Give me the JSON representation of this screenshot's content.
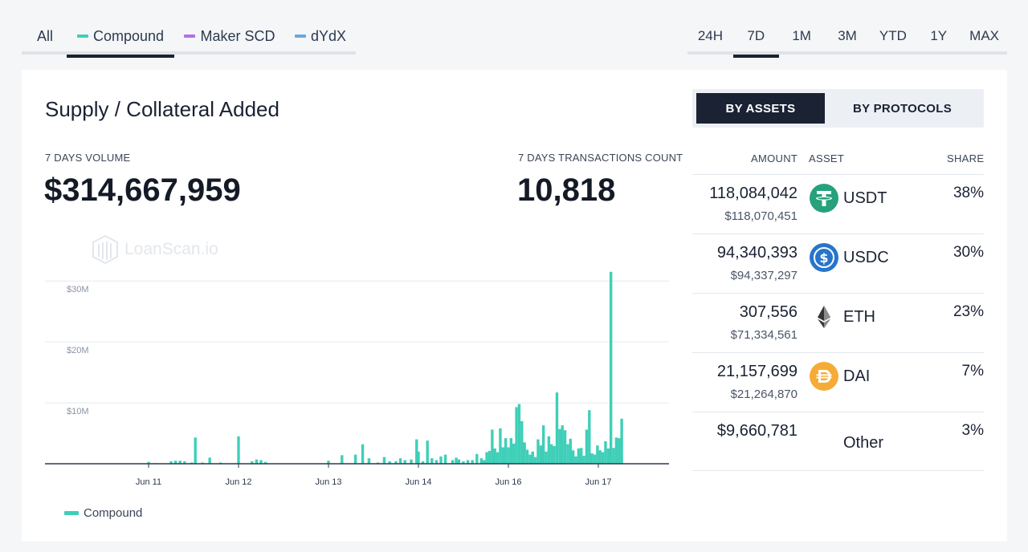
{
  "protocol_tabs": [
    {
      "label": "All",
      "color": null
    },
    {
      "label": "Compound",
      "color": "#3fcfb8"
    },
    {
      "label": "Maker SCD",
      "color": "#b36ee8"
    },
    {
      "label": "dYdX",
      "color": "#6aa8e0"
    }
  ],
  "active_protocol": "Compound",
  "time_tabs": [
    "24H",
    "7D",
    "1M",
    "3M",
    "YTD",
    "1Y",
    "MAX"
  ],
  "active_time": "7D",
  "card": {
    "title": "Supply / Collateral Added",
    "volume_label": "7 DAYS VOLUME",
    "volume_value": "$314,667,959",
    "tx_label": "7 DAYS TRANSACTIONS COUNT",
    "tx_value": "10,818",
    "watermark": "LoanScan.io"
  },
  "breakdown": {
    "tabs": [
      "BY ASSETS",
      "BY PROTOCOLS"
    ],
    "active": "BY ASSETS",
    "headers": {
      "amount": "AMOUNT",
      "asset": "ASSET",
      "share": "SHARE"
    },
    "rows": [
      {
        "amount": "118,084,042",
        "usd": "$118,070,451",
        "symbol": "USDT",
        "share": "38%",
        "icon": "tether-icon",
        "color": "#26a17b"
      },
      {
        "amount": "94,340,393",
        "usd": "$94,337,297",
        "symbol": "USDC",
        "share": "30%",
        "icon": "usdc-icon",
        "color": "#2775ca"
      },
      {
        "amount": "307,556",
        "usd": "$71,334,561",
        "symbol": "ETH",
        "share": "23%",
        "icon": "ethereum-icon",
        "color": "#343434"
      },
      {
        "amount": "21,157,699",
        "usd": "$21,264,870",
        "symbol": "DAI",
        "share": "7%",
        "icon": "dai-icon",
        "color": "#f5ac37"
      },
      {
        "amount": "$9,660,781",
        "usd": "",
        "symbol": "Other",
        "share": "3%",
        "icon": "",
        "color": ""
      }
    ]
  },
  "chart_data": {
    "type": "bar",
    "series": [
      {
        "name": "Compound",
        "color": "#3fcfb8"
      }
    ],
    "y_ticks": [
      "$10M",
      "$20M",
      "$30M"
    ],
    "y_tick_values": [
      10,
      20,
      30
    ],
    "ylim": [
      0,
      32
    ],
    "y_unit": "$M",
    "x_ticks": [
      "Jun 11",
      "Jun 12",
      "Jun 13",
      "Jun 14",
      "Jun 16",
      "Jun 17"
    ],
    "x_tick_values": [
      1.0,
      2.0,
      3.0,
      4.0,
      5.0,
      6.0
    ],
    "xlim": [
      0,
      7
    ],
    "grid": true,
    "legend_position": "bottom-left",
    "bar_x": [
      1.0,
      1.07,
      1.25,
      1.3,
      1.35,
      1.4,
      1.48,
      1.52,
      1.6,
      1.68,
      1.8,
      2.0,
      2.15,
      2.2,
      2.25,
      2.3,
      3.0,
      3.15,
      3.3,
      3.38,
      3.45,
      3.55,
      3.62,
      3.68,
      3.75,
      3.8,
      3.85,
      3.92,
      3.98,
      4.0,
      4.05,
      4.1,
      4.15,
      4.2,
      4.25,
      4.3,
      4.38,
      4.42,
      4.45,
      4.5,
      4.55,
      4.6,
      4.65,
      4.7,
      4.73,
      4.76,
      4.79,
      4.82,
      4.85,
      4.88,
      4.91,
      4.94,
      4.97,
      5.0,
      5.03,
      5.06,
      5.09,
      5.12,
      5.15,
      5.18,
      5.21,
      5.24,
      5.27,
      5.3,
      5.33,
      5.36,
      5.39,
      5.42,
      5.45,
      5.48,
      5.51,
      5.54,
      5.57,
      5.6,
      5.63,
      5.66,
      5.69,
      5.72,
      5.75,
      5.78,
      5.81,
      5.84,
      5.87,
      5.9,
      5.93,
      5.96,
      5.99,
      6.02,
      6.05,
      6.08,
      6.11,
      6.14,
      6.17,
      6.2,
      6.23,
      6.26
    ],
    "values": [
      0.3,
      0.1,
      0.4,
      0.5,
      0.5,
      0.4,
      0.2,
      4.3,
      0.2,
      1.0,
      0.2,
      4.5,
      0.4,
      0.7,
      0.6,
      0.3,
      0.5,
      1.4,
      1.5,
      3.2,
      0.9,
      0.2,
      1.1,
      0.4,
      0.4,
      0.9,
      0.6,
      0.7,
      4.0,
      2.0,
      0.4,
      3.8,
      0.9,
      0.6,
      1.2,
      1.5,
      0.6,
      1.0,
      0.7,
      0.4,
      0.6,
      0.6,
      1.6,
      0.9,
      0.6,
      1.9,
      2.1,
      5.6,
      2.5,
      1.9,
      5.8,
      2.7,
      4.2,
      2.7,
      4.2,
      3.3,
      9.3,
      9.8,
      7.0,
      3.5,
      2.3,
      1.5,
      2.0,
      1.1,
      4.0,
      3.0,
      6.3,
      2.0,
      4.5,
      3.2,
      2.9,
      11.7,
      5.7,
      6.3,
      5.5,
      3.2,
      4.1,
      2.2,
      1.2,
      2.5,
      2.6,
      1.3,
      5.6,
      8.8,
      1.7,
      1.5,
      3.0,
      2.2,
      1.9,
      3.7,
      2.5,
      31.5,
      2.6,
      4.3,
      4.2,
      7.4
    ]
  },
  "legend": {
    "label": "Compound"
  }
}
